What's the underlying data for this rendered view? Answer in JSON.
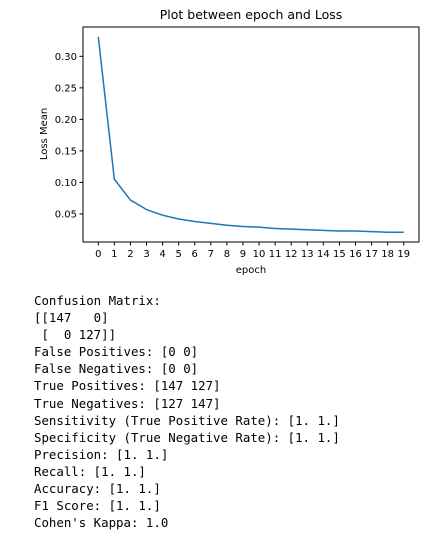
{
  "chart_data": {
    "type": "line",
    "title": "Plot between epoch and Loss",
    "xlabel": "epoch",
    "ylabel": "Loss Mean",
    "x": [
      0,
      1,
      2,
      3,
      4,
      5,
      6,
      7,
      8,
      9,
      10,
      11,
      12,
      13,
      14,
      15,
      16,
      17,
      18,
      19
    ],
    "series": [
      {
        "values": [
          0.331,
          0.105,
          0.072,
          0.057,
          0.048,
          0.042,
          0.038,
          0.035,
          0.032,
          0.03,
          0.029,
          0.027,
          0.026,
          0.025,
          0.024,
          0.023,
          0.023,
          0.022,
          0.021,
          0.021
        ],
        "color": "#1f77b4"
      }
    ],
    "xticks": [
      "0",
      "1",
      "2",
      "3",
      "4",
      "5",
      "6",
      "7",
      "8",
      "9",
      "10",
      "11",
      "12",
      "13",
      "14",
      "15",
      "16",
      "17",
      "18",
      "19"
    ],
    "yticks": [
      0.05,
      0.1,
      0.15,
      0.2,
      0.25,
      0.3
    ],
    "ytick_labels": [
      "0.05",
      "0.10",
      "0.15",
      "0.20",
      "0.25",
      "0.30"
    ],
    "xlim": [
      -0.95,
      19.95
    ],
    "ylim": [
      0.0055,
      0.3465
    ],
    "grid": false
  },
  "output_lines": [
    "Confusion Matrix:",
    "[[147   0]",
    " [  0 127]]",
    "False Positives: [0 0]",
    "False Negatives: [0 0]",
    "True Positives: [147 127]",
    "True Negatives: [127 147]",
    "Sensitivity (True Positive Rate): [1. 1.]",
    "Specificity (True Negative Rate): [1. 1.]",
    "Precision: [1. 1.]",
    "Recall: [1. 1.]",
    "Accuracy: [1. 1.]",
    "F1 Score: [1. 1.]",
    "Cohen's Kappa: 1.0"
  ]
}
